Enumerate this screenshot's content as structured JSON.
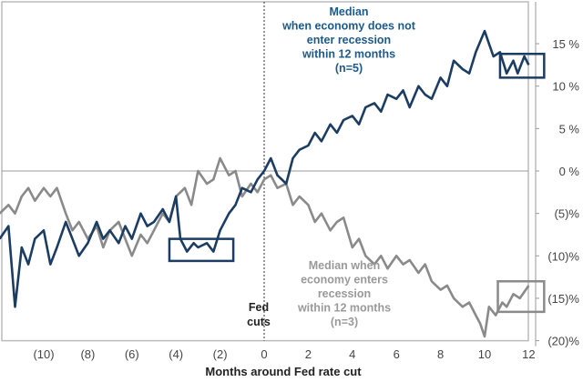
{
  "chart_data": {
    "type": "line",
    "title": "",
    "xlabel": "Months around Fed rate cut",
    "ylabel": "",
    "xlim": [
      -12,
      12
    ],
    "ylim": [
      -20,
      19.5
    ],
    "x_ticks": [
      {
        "v": -10,
        "label": "(10)"
      },
      {
        "v": -8,
        "label": "(8)"
      },
      {
        "v": -6,
        "label": "(6)"
      },
      {
        "v": -4,
        "label": "(4)"
      },
      {
        "v": -2,
        "label": "(2)"
      },
      {
        "v": 0,
        "label": "0"
      },
      {
        "v": 2,
        "label": "2"
      },
      {
        "v": 4,
        "label": "4"
      },
      {
        "v": 6,
        "label": "6"
      },
      {
        "v": 8,
        "label": "8"
      },
      {
        "v": 10,
        "label": "10"
      },
      {
        "v": 12,
        "label": "12"
      }
    ],
    "y_ticks": [
      {
        "v": 15,
        "label": "15 %"
      },
      {
        "v": 10,
        "label": "10 %"
      },
      {
        "v": 5,
        "label": "5 %"
      },
      {
        "v": 0,
        "label": "0 %"
      },
      {
        "v": -5,
        "label": "(5)%"
      },
      {
        "v": -10,
        "label": "(10)%"
      },
      {
        "v": -15,
        "label": "(15)%"
      },
      {
        "v": -20,
        "label": "(20)%"
      }
    ],
    "series": [
      {
        "name": "Median when economy does not enter recession within 12 months (n=5)",
        "color": "#1c3d63",
        "x": [
          -12,
          -11.6,
          -11.3,
          -11,
          -10.7,
          -10.4,
          -10,
          -9.7,
          -9.4,
          -9,
          -8.7,
          -8.4,
          -8,
          -7.6,
          -7.3,
          -7,
          -6.6,
          -6.3,
          -6,
          -5.6,
          -5.3,
          -5,
          -4.6,
          -4.3,
          -4,
          -3.8,
          -3.5,
          -3.2,
          -3,
          -2.6,
          -2.3,
          -2,
          -1.6,
          -1.3,
          -1,
          -0.6,
          -0.3,
          0,
          0.3,
          0.6,
          1,
          1.3,
          1.6,
          2,
          2.3,
          2.6,
          3,
          3.3,
          3.6,
          4,
          4.3,
          4.6,
          5,
          5.3,
          5.6,
          6,
          6.3,
          6.6,
          7,
          7.3,
          7.6,
          8,
          8.3,
          8.6,
          9,
          9.3,
          9.6,
          10,
          10.2,
          10.4,
          10.7,
          11,
          11.3,
          11.5,
          11.8,
          12
        ],
        "y": [
          -8,
          -6.5,
          -16,
          -9,
          -11,
          -8,
          -7,
          -11,
          -9,
          -6,
          -8,
          -10,
          -8.5,
          -6,
          -8,
          -7,
          -8.5,
          -6.5,
          -8,
          -5,
          -6.5,
          -6,
          -4.5,
          -6,
          -3,
          -8,
          -9.5,
          -8.5,
          -9,
          -8.5,
          -9.5,
          -7,
          -5,
          -4,
          -2,
          -2.5,
          -1,
          0,
          1.5,
          -0.5,
          -1.5,
          1.5,
          2.5,
          3,
          4.5,
          3.5,
          5.5,
          4.5,
          6,
          6.5,
          5.5,
          7.5,
          8,
          7,
          9,
          8.5,
          9.5,
          7.5,
          10,
          9,
          8.5,
          11,
          10,
          13,
          12,
          11.5,
          14,
          16.5,
          15,
          13.5,
          14,
          11.5,
          13,
          11.5,
          13.5,
          12.5
        ]
      },
      {
        "name": "Median when economy enters recession within 12 months (n=3)",
        "color": "#8a8a8a",
        "x": [
          -12,
          -11.6,
          -11.3,
          -11,
          -10.7,
          -10.4,
          -10,
          -9.7,
          -9.4,
          -9,
          -8.7,
          -8.4,
          -8,
          -7.6,
          -7.3,
          -7,
          -6.6,
          -6.3,
          -6,
          -5.6,
          -5.3,
          -5,
          -4.6,
          -4.3,
          -4,
          -3.6,
          -3.3,
          -3,
          -2.6,
          -2.3,
          -2,
          -1.6,
          -1.3,
          -1,
          -0.6,
          -0.3,
          0,
          0.3,
          0.6,
          1,
          1.3,
          1.6,
          2,
          2.3,
          2.6,
          3,
          3.3,
          3.6,
          4,
          4.3,
          4.6,
          5,
          5.3,
          5.6,
          6,
          6.3,
          6.6,
          7,
          7.3,
          7.6,
          8,
          8.3,
          8.6,
          9,
          9.3,
          9.6,
          9.8,
          10,
          10.2,
          10.5,
          10.8,
          11,
          11.3,
          11.6,
          12
        ],
        "y": [
          -5,
          -4,
          -5,
          -3,
          -2,
          -3.5,
          -2,
          -3,
          -2,
          -5,
          -7,
          -6,
          -8,
          -6.5,
          -9,
          -7,
          -6,
          -8,
          -10,
          -7.5,
          -8.5,
          -7,
          -5,
          -6,
          -3,
          -2,
          -4,
          0,
          -1.5,
          -1,
          1.5,
          -0.5,
          0,
          -3,
          -1.5,
          -2.5,
          -1,
          -0.5,
          -2,
          -1.5,
          -4,
          -3,
          -4,
          -6,
          -5,
          -7,
          -6,
          -5.5,
          -9,
          -8,
          -10,
          -11,
          -10,
          -11.5,
          -10,
          -11,
          -10.5,
          -12,
          -11,
          -13,
          -14,
          -13.5,
          -15,
          -16,
          -15.5,
          -17,
          -18,
          -19.5,
          -16,
          -17,
          -15.5,
          -16,
          -14.5,
          -15,
          -13.5
        ]
      }
    ],
    "highlight_boxes": [
      {
        "x": [
          10.7,
          12.7
        ],
        "y": [
          11,
          13.8
        ],
        "color": "#1c3d63"
      },
      {
        "x": [
          -4.3,
          -1.4
        ],
        "y": [
          -10.6,
          -8
        ],
        "color": "#1c3d63"
      },
      {
        "x": [
          10.6,
          12.7
        ],
        "y": [
          -16.6,
          -13
        ],
        "color": "#8a8a8a"
      }
    ],
    "annotations": {
      "no_recession": [
        "Median",
        "when economy does not",
        "enter recession",
        "within 12 months",
        "(n=5)"
      ],
      "recession": [
        "Median when",
        "economy enters",
        "recession",
        "within 12 months",
        "(n=3)"
      ],
      "fed_cuts": [
        "Fed",
        "cuts"
      ]
    },
    "grid": false,
    "legend": "none"
  }
}
